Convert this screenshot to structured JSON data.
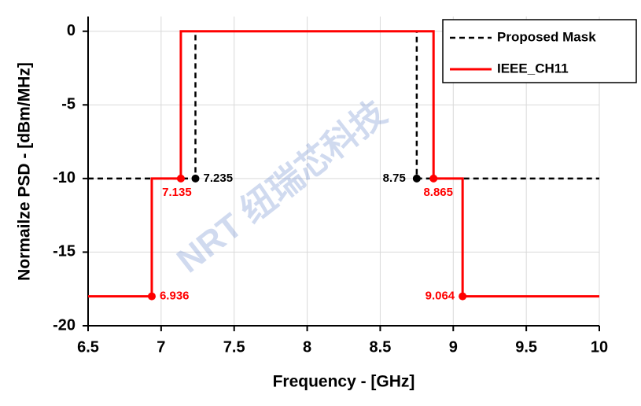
{
  "chart_data": {
    "type": "line",
    "x_label": "Frequency - [GHz]",
    "y_label": "Normailze PSD - [dBm/MHz]",
    "xlim": [
      6.5,
      10
    ],
    "ylim": [
      -20,
      1
    ],
    "xticks": [
      6.5,
      7,
      7.5,
      8,
      8.5,
      9,
      9.5,
      10
    ],
    "yticks": [
      0,
      -5,
      -10,
      -15,
      -20
    ],
    "grid": true,
    "legend": "upper right",
    "watermark": "NRT 纽瑞芯科技",
    "series": [
      {
        "name": "Proposed Mask",
        "color": "#000000",
        "dash": true,
        "x": [
          6.5,
          7.235,
          7.235,
          8.75,
          8.75,
          10
        ],
        "values": [
          -10,
          -10,
          0,
          0,
          -10,
          -10
        ]
      },
      {
        "name": "IEEE_CH11",
        "color": "#ff0000",
        "dash": false,
        "x": [
          6.5,
          6.936,
          6.936,
          7.135,
          7.135,
          8.865,
          8.865,
          9.064,
          9.064,
          10
        ],
        "values": [
          -18,
          -18,
          -10,
          -10,
          0,
          0,
          -10,
          -10,
          -18,
          -18
        ]
      }
    ],
    "annotations": [
      {
        "x": 7.235,
        "y": -10,
        "label": "7.235",
        "color": "#000000"
      },
      {
        "x": 8.75,
        "y": -10,
        "label": "8.75",
        "color": "#000000"
      },
      {
        "x": 7.135,
        "y": -10,
        "label": "7.135",
        "color": "#ff0000"
      },
      {
        "x": 8.865,
        "y": -10,
        "label": "8.865",
        "color": "#ff0000"
      },
      {
        "x": 6.936,
        "y": -18,
        "label": "6.936",
        "color": "#ff0000"
      },
      {
        "x": 9.064,
        "y": -18,
        "label": "9.064",
        "color": "#ff0000"
      }
    ]
  }
}
